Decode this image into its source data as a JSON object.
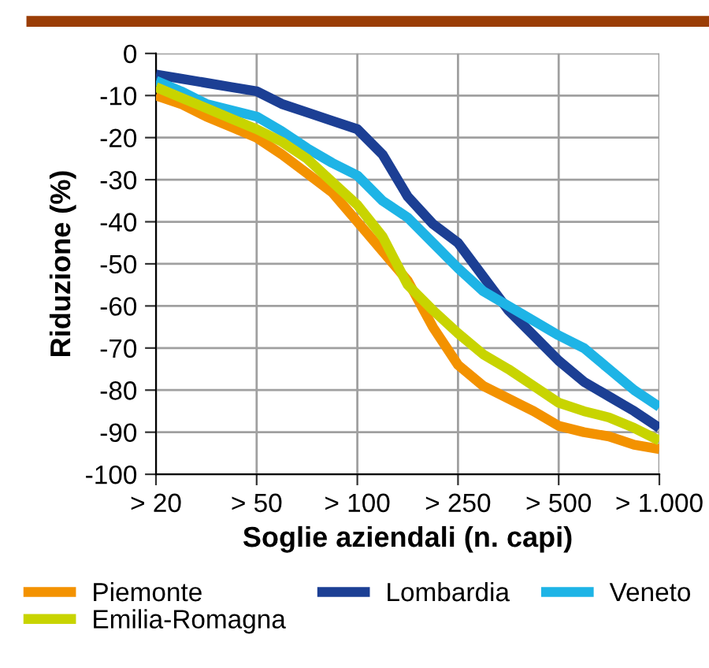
{
  "chart_data": {
    "type": "line",
    "xlabel": "Soglie aziendali (n. capi)",
    "ylabel": "Riduzione (%)",
    "categories": [
      "> 20",
      null,
      null,
      null,
      "> 50",
      null,
      null,
      null,
      "> 100",
      null,
      null,
      null,
      "> 250",
      null,
      null,
      null,
      "> 500",
      null,
      null,
      null,
      "> 1.000"
    ],
    "ylim": [
      -100,
      0
    ],
    "yticks": [
      0,
      -10,
      -20,
      -30,
      -40,
      -50,
      -60,
      -70,
      -80,
      -90,
      -100
    ],
    "grid": true,
    "legend": "bottom",
    "marker": "none",
    "line_style": "solid",
    "series": [
      {
        "name": "Piemonte",
        "color": "#f39200",
        "values": [
          -10,
          -12,
          -15,
          -17.5,
          -20,
          -24,
          -28.5,
          -33,
          -40,
          -47,
          -54,
          -65,
          -74,
          -79,
          -82,
          -85,
          -88.5,
          -90,
          -91,
          -93,
          -94
        ]
      },
      {
        "name": "Lombardia",
        "color": "#1c3f94",
        "values": [
          -5,
          -6,
          -7,
          -8,
          -9,
          -12,
          -14,
          -16,
          -18,
          -24,
          -34,
          -40.5,
          -45,
          -53,
          -61,
          -67,
          -73,
          -78,
          -81.5,
          -85,
          -89
        ]
      },
      {
        "name": "Veneto",
        "color": "#1eb4e6",
        "values": [
          -6.5,
          -9,
          -12,
          -13.5,
          -15,
          -18.5,
          -22.5,
          -26,
          -29,
          -35,
          -39,
          -45,
          -51,
          -56.5,
          -60,
          -63.5,
          -67,
          -70,
          -75,
          -80,
          -84
        ]
      },
      {
        "name": "Emilia-Romagna",
        "color": "#c8d400",
        "values": [
          -8,
          -10.5,
          -13,
          -15.5,
          -18,
          -21,
          -25,
          -30.5,
          -36,
          -43.5,
          -55,
          -61,
          -66.5,
          -71.5,
          -75,
          -79,
          -83,
          -85,
          -86.5,
          -89,
          -92
        ]
      }
    ]
  }
}
